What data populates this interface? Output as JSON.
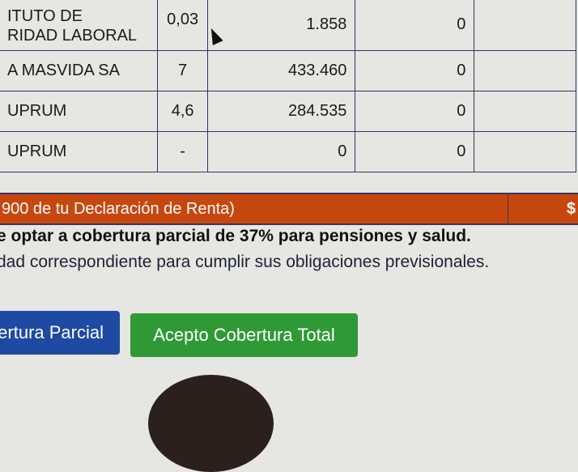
{
  "table": {
    "rows": [
      {
        "name": "ITUTO DE\nRIDAD LABORAL",
        "name_line1": "ITUTO DE",
        "name_line2": "RIDAD LABORAL",
        "rate": "0,03",
        "amount": "1.858",
        "other": "0"
      },
      {
        "name": "A MASVIDA SA",
        "rate": "7",
        "amount": "433.460",
        "other": "0"
      },
      {
        "name": "UPRUM",
        "rate": "4,6",
        "amount": "284.535",
        "other": "0"
      },
      {
        "name": "UPRUM",
        "rate": "-",
        "amount": "0",
        "other": "0"
      }
    ]
  },
  "total_bar": {
    "label": "900 de tu Declaración de Renta)",
    "value": "$"
  },
  "notice": {
    "bold": "e optar a cobertura parcial de 37% para pensiones y salud.",
    "normal": "dad correspondiente para cumplir sus obligaciones previsionales."
  },
  "buttons": {
    "partial": "ertura Parcial",
    "total": "Acepto Cobertura Total"
  },
  "colors": {
    "orange_bar": "#c8470f",
    "blue_button": "#1f4aa3",
    "green_button": "#2f9a35",
    "grid": "#2e3566"
  }
}
